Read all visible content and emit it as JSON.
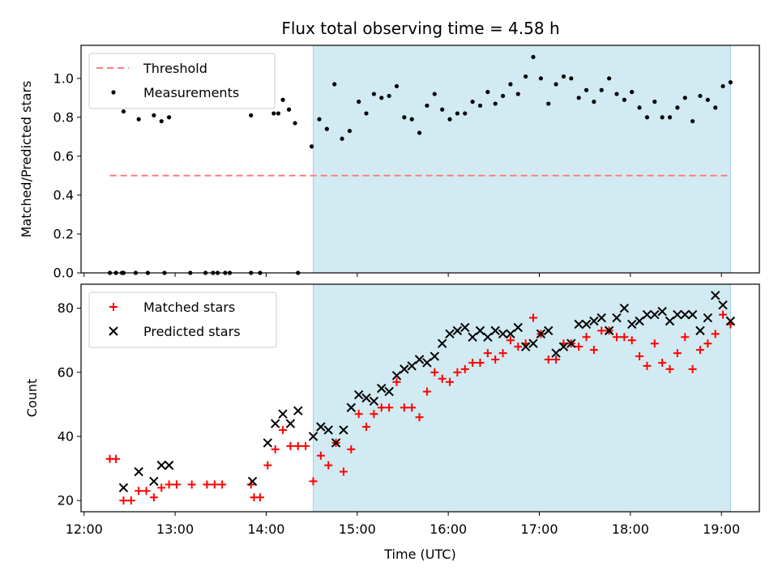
{
  "chart_data": [
    {
      "type": "scatter",
      "title": "Flux total observing time = 4.58 h",
      "ylabel": "Matched/Predicted stars",
      "ylim": [
        0,
        1.17
      ],
      "xlim": [
        "11:58",
        "19:25"
      ],
      "yticks": [
        "0.0",
        "0.2",
        "0.4",
        "0.6",
        "0.8",
        "1.0"
      ],
      "shaded_interval": [
        "14:31",
        "19:06"
      ],
      "shade_color": "#add8e6",
      "legend_position": "upper-left",
      "threshold": {
        "name": "Threshold",
        "value": 0.5,
        "x_range": [
          "12:17",
          "19:06"
        ],
        "color": "#ff7f7f",
        "style": "dashed"
      },
      "series": [
        {
          "name": "Measurements",
          "marker": "dot",
          "color": "#000000",
          "points": [
            [
              "12:17",
              0.0
            ],
            [
              "12:21",
              0.0
            ],
            [
              "12:25",
              0.0
            ],
            [
              "12:26",
              0.0
            ],
            [
              "12:34",
              0.0
            ],
            [
              "12:42",
              0.0
            ],
            [
              "12:53",
              0.0
            ],
            [
              "13:10",
              0.0
            ],
            [
              "13:20",
              0.0
            ],
            [
              "13:25",
              0.0
            ],
            [
              "13:28",
              0.0
            ],
            [
              "13:33",
              0.0
            ],
            [
              "13:36",
              0.0
            ],
            [
              "13:50",
              0.0
            ],
            [
              "13:56",
              0.0
            ],
            [
              "14:21",
              0.0
            ],
            [
              "12:26",
              0.83
            ],
            [
              "12:36",
              0.79
            ],
            [
              "12:46",
              0.81
            ],
            [
              "12:51",
              0.78
            ],
            [
              "12:56",
              0.8
            ],
            [
              "13:50",
              0.81
            ],
            [
              "14:05",
              0.82
            ],
            [
              "14:08",
              0.82
            ],
            [
              "14:11",
              0.89
            ],
            [
              "14:15",
              0.84
            ],
            [
              "14:19",
              0.77
            ],
            [
              "14:30",
              0.65
            ],
            [
              "14:35",
              0.79
            ],
            [
              "14:40",
              0.74
            ],
            [
              "14:45",
              0.97
            ],
            [
              "14:50",
              0.69
            ],
            [
              "14:55",
              0.73
            ],
            [
              "15:01",
              0.88
            ],
            [
              "15:06",
              0.82
            ],
            [
              "15:11",
              0.92
            ],
            [
              "15:16",
              0.9
            ],
            [
              "15:21",
              0.91
            ],
            [
              "15:26",
              0.96
            ],
            [
              "15:31",
              0.8
            ],
            [
              "15:36",
              0.79
            ],
            [
              "15:41",
              0.72
            ],
            [
              "15:46",
              0.86
            ],
            [
              "15:51",
              0.92
            ],
            [
              "15:56",
              0.84
            ],
            [
              "16:01",
              0.79
            ],
            [
              "16:06",
              0.82
            ],
            [
              "16:11",
              0.82
            ],
            [
              "16:16",
              0.88
            ],
            [
              "16:21",
              0.86
            ],
            [
              "16:26",
              0.93
            ],
            [
              "16:31",
              0.87
            ],
            [
              "16:36",
              0.91
            ],
            [
              "16:41",
              0.97
            ],
            [
              "16:46",
              0.92
            ],
            [
              "16:51",
              1.01
            ],
            [
              "16:56",
              1.11
            ],
            [
              "17:01",
              1.0
            ],
            [
              "17:06",
              0.87
            ],
            [
              "17:11",
              0.97
            ],
            [
              "17:16",
              1.01
            ],
            [
              "17:21",
              1.0
            ],
            [
              "17:26",
              0.9
            ],
            [
              "17:31",
              0.94
            ],
            [
              "17:36",
              0.88
            ],
            [
              "17:41",
              0.94
            ],
            [
              "17:46",
              1.0
            ],
            [
              "17:51",
              0.92
            ],
            [
              "17:56",
              0.89
            ],
            [
              "18:01",
              0.93
            ],
            [
              "18:06",
              0.85
            ],
            [
              "18:11",
              0.8
            ],
            [
              "18:16",
              0.88
            ],
            [
              "18:21",
              0.8
            ],
            [
              "18:26",
              0.8
            ],
            [
              "18:31",
              0.85
            ],
            [
              "18:36",
              0.9
            ],
            [
              "18:41",
              0.78
            ],
            [
              "18:46",
              0.91
            ],
            [
              "18:51",
              0.89
            ],
            [
              "18:56",
              0.85
            ],
            [
              "19:01",
              0.96
            ],
            [
              "19:06",
              0.98
            ]
          ]
        }
      ]
    },
    {
      "type": "scatter",
      "xlabel": "Time (UTC)",
      "ylabel": "Count",
      "ylim": [
        16.5,
        87.5
      ],
      "xlim": [
        "11:58",
        "19:25"
      ],
      "yticks": [
        "20",
        "40",
        "60",
        "80"
      ],
      "xticks": [
        "12:00",
        "13:00",
        "14:00",
        "15:00",
        "16:00",
        "17:00",
        "18:00",
        "19:00"
      ],
      "shaded_interval": [
        "14:31",
        "19:06"
      ],
      "shade_color": "#add8e6",
      "legend_position": "upper-left",
      "series": [
        {
          "name": "Matched stars",
          "marker": "plus",
          "color": "#ff0000",
          "points": [
            [
              "12:17",
              33
            ],
            [
              "12:21",
              33
            ],
            [
              "12:26",
              20
            ],
            [
              "12:31",
              20
            ],
            [
              "12:36",
              23
            ],
            [
              "12:41",
              23
            ],
            [
              "12:46",
              21
            ],
            [
              "12:51",
              24
            ],
            [
              "12:56",
              25
            ],
            [
              "13:01",
              25
            ],
            [
              "13:11",
              25
            ],
            [
              "13:21",
              25
            ],
            [
              "13:26",
              25
            ],
            [
              "13:31",
              25
            ],
            [
              "13:50",
              25
            ],
            [
              "13:52",
              21
            ],
            [
              "13:56",
              21
            ],
            [
              "14:01",
              31
            ],
            [
              "14:06",
              36
            ],
            [
              "14:11",
              42
            ],
            [
              "14:16",
              37
            ],
            [
              "14:21",
              37
            ],
            [
              "14:26",
              37
            ],
            [
              "14:31",
              26
            ],
            [
              "14:36",
              34
            ],
            [
              "14:41",
              31
            ],
            [
              "14:46",
              38
            ],
            [
              "14:51",
              29
            ],
            [
              "14:56",
              36
            ],
            [
              "15:01",
              47
            ],
            [
              "15:06",
              43
            ],
            [
              "15:11",
              47
            ],
            [
              "15:16",
              49
            ],
            [
              "15:21",
              49
            ],
            [
              "15:26",
              57
            ],
            [
              "15:31",
              49
            ],
            [
              "15:36",
              49
            ],
            [
              "15:41",
              46
            ],
            [
              "15:46",
              54
            ],
            [
              "15:51",
              60
            ],
            [
              "15:56",
              58
            ],
            [
              "16:01",
              57
            ],
            [
              "16:06",
              60
            ],
            [
              "16:11",
              61
            ],
            [
              "16:16",
              63
            ],
            [
              "16:21",
              63
            ],
            [
              "16:26",
              66
            ],
            [
              "16:31",
              64
            ],
            [
              "16:36",
              66
            ],
            [
              "16:41",
              70
            ],
            [
              "16:46",
              68
            ],
            [
              "16:51",
              69
            ],
            [
              "16:56",
              77
            ],
            [
              "17:01",
              72
            ],
            [
              "17:06",
              64
            ],
            [
              "17:11",
              64
            ],
            [
              "17:16",
              69
            ],
            [
              "17:21",
              69
            ],
            [
              "17:26",
              68
            ],
            [
              "17:31",
              71
            ],
            [
              "17:36",
              67
            ],
            [
              "17:41",
              73
            ],
            [
              "17:46",
              73
            ],
            [
              "17:51",
              71
            ],
            [
              "17:56",
              71
            ],
            [
              "18:01",
              70
            ],
            [
              "18:06",
              65
            ],
            [
              "18:11",
              62
            ],
            [
              "18:16",
              69
            ],
            [
              "18:21",
              63
            ],
            [
              "18:26",
              61
            ],
            [
              "18:31",
              66
            ],
            [
              "18:36",
              71
            ],
            [
              "18:41",
              61
            ],
            [
              "18:46",
              67
            ],
            [
              "18:51",
              69
            ],
            [
              "18:56",
              72
            ],
            [
              "19:01",
              78
            ],
            [
              "19:06",
              75
            ]
          ]
        },
        {
          "name": "Predicted stars",
          "marker": "x",
          "color": "#000000",
          "points": [
            [
              "12:26",
              24
            ],
            [
              "12:36",
              29
            ],
            [
              "12:46",
              26
            ],
            [
              "12:51",
              31
            ],
            [
              "12:56",
              31
            ],
            [
              "13:51",
              26
            ],
            [
              "14:01",
              38
            ],
            [
              "14:06",
              44
            ],
            [
              "14:11",
              47
            ],
            [
              "14:16",
              44
            ],
            [
              "14:21",
              48
            ],
            [
              "14:31",
              40
            ],
            [
              "14:36",
              43
            ],
            [
              "14:41",
              42
            ],
            [
              "14:46",
              38
            ],
            [
              "14:51",
              42
            ],
            [
              "14:56",
              49
            ],
            [
              "15:01",
              53
            ],
            [
              "15:06",
              52
            ],
            [
              "15:11",
              51
            ],
            [
              "15:16",
              55
            ],
            [
              "15:21",
              54
            ],
            [
              "15:26",
              59
            ],
            [
              "15:31",
              61
            ],
            [
              "15:36",
              62
            ],
            [
              "15:41",
              64
            ],
            [
              "15:46",
              63
            ],
            [
              "15:51",
              65
            ],
            [
              "15:56",
              69
            ],
            [
              "16:01",
              72
            ],
            [
              "16:06",
              73
            ],
            [
              "16:11",
              74
            ],
            [
              "16:16",
              71
            ],
            [
              "16:21",
              73
            ],
            [
              "16:26",
              71
            ],
            [
              "16:31",
              73
            ],
            [
              "16:36",
              72
            ],
            [
              "16:41",
              72
            ],
            [
              "16:46",
              74
            ],
            [
              "16:51",
              68
            ],
            [
              "16:56",
              69
            ],
            [
              "17:01",
              72
            ],
            [
              "17:06",
              73
            ],
            [
              "17:11",
              66
            ],
            [
              "17:16",
              68
            ],
            [
              "17:21",
              69
            ],
            [
              "17:26",
              75
            ],
            [
              "17:31",
              75
            ],
            [
              "17:36",
              76
            ],
            [
              "17:41",
              77
            ],
            [
              "17:46",
              73
            ],
            [
              "17:51",
              77
            ],
            [
              "17:56",
              80
            ],
            [
              "18:01",
              75
            ],
            [
              "18:06",
              76
            ],
            [
              "18:11",
              78
            ],
            [
              "18:16",
              78
            ],
            [
              "18:21",
              79
            ],
            [
              "18:26",
              76
            ],
            [
              "18:31",
              78
            ],
            [
              "18:36",
              78
            ],
            [
              "18:41",
              78
            ],
            [
              "18:46",
              73
            ],
            [
              "18:51",
              77
            ],
            [
              "18:56",
              84
            ],
            [
              "19:01",
              81
            ],
            [
              "19:06",
              76
            ]
          ]
        }
      ]
    }
  ]
}
